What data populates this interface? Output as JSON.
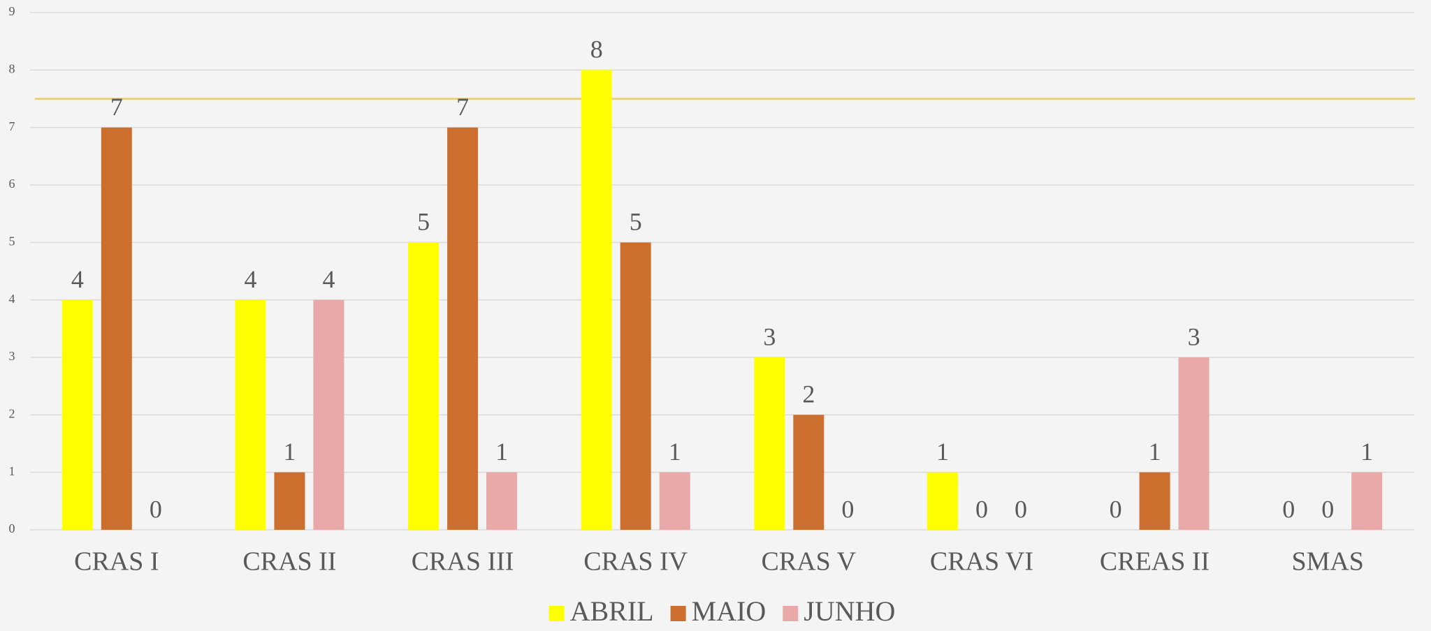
{
  "chart_data": {
    "type": "bar",
    "categories": [
      "CRAS I",
      "CRAS II",
      "CRAS III",
      "CRAS IV",
      "CRAS V",
      "CRAS VI",
      "CREAS II",
      "SMAS"
    ],
    "series": [
      {
        "name": "ABRIL",
        "color": "#ffff00",
        "values": [
          4,
          4,
          5,
          8,
          3,
          1,
          0,
          0
        ]
      },
      {
        "name": "MAIO",
        "color": "#cc6f2e",
        "values": [
          7,
          1,
          7,
          5,
          2,
          0,
          1,
          0
        ]
      },
      {
        "name": "JUNHO",
        "color": "#e8a9a8",
        "values": [
          0,
          4,
          1,
          1,
          0,
          0,
          3,
          1
        ]
      }
    ],
    "ylim": [
      0,
      9
    ],
    "yticks": [
      0,
      1,
      2,
      3,
      4,
      5,
      6,
      7,
      8,
      9
    ],
    "grid": true,
    "reference_line": {
      "value": 7.5,
      "color": "#e8cf8c"
    },
    "legend": "bottom"
  }
}
